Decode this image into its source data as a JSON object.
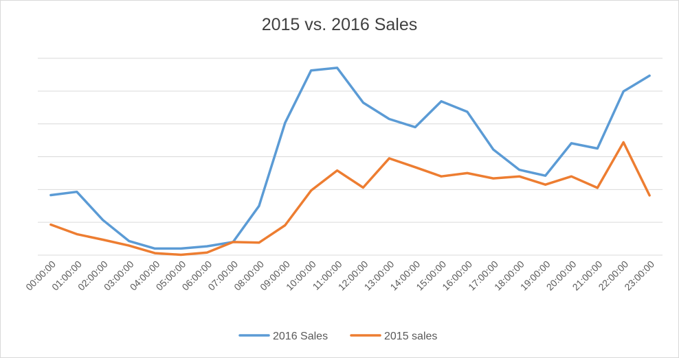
{
  "chart_data": {
    "type": "line",
    "title": "2015 vs. 2016 Sales",
    "xlabel": "",
    "ylabel": "",
    "categories": [
      "00:00:00",
      "01:00:00",
      "02:00:00",
      "03:00:00",
      "04:00:00",
      "05:00:00",
      "06:00:00",
      "07:00:00",
      "08:00:00",
      "09:00:00",
      "10:00:00",
      "11:00:00",
      "12:00:00",
      "13:00:00",
      "14:00:00",
      "15:00:00",
      "16:00:00",
      "17:00:00",
      "18:00:00",
      "19:00:00",
      "20:00:00",
      "21:00:00",
      "22:00:00",
      "23:00:00"
    ],
    "ylim": [
      0,
      6
    ],
    "grid": true,
    "y_tick_labels_shown": false,
    "legend_position": "bottom",
    "series": [
      {
        "name": "2016 Sales",
        "color": "#5B9BD5",
        "values": [
          1.83,
          1.93,
          1.07,
          0.43,
          0.2,
          0.2,
          0.27,
          0.4,
          1.5,
          4.03,
          5.63,
          5.71,
          4.65,
          4.15,
          3.9,
          4.69,
          4.37,
          3.22,
          2.6,
          2.42,
          3.41,
          3.25,
          4.99,
          5.47
        ]
      },
      {
        "name": "2015 sales",
        "color": "#ED7D31",
        "values": [
          0.93,
          0.64,
          0.47,
          0.29,
          0.06,
          0.01,
          0.08,
          0.4,
          0.38,
          0.91,
          1.97,
          2.58,
          2.06,
          2.95,
          2.68,
          2.4,
          2.5,
          2.34,
          2.4,
          2.15,
          2.4,
          2.05,
          3.44,
          1.82
        ]
      }
    ]
  }
}
